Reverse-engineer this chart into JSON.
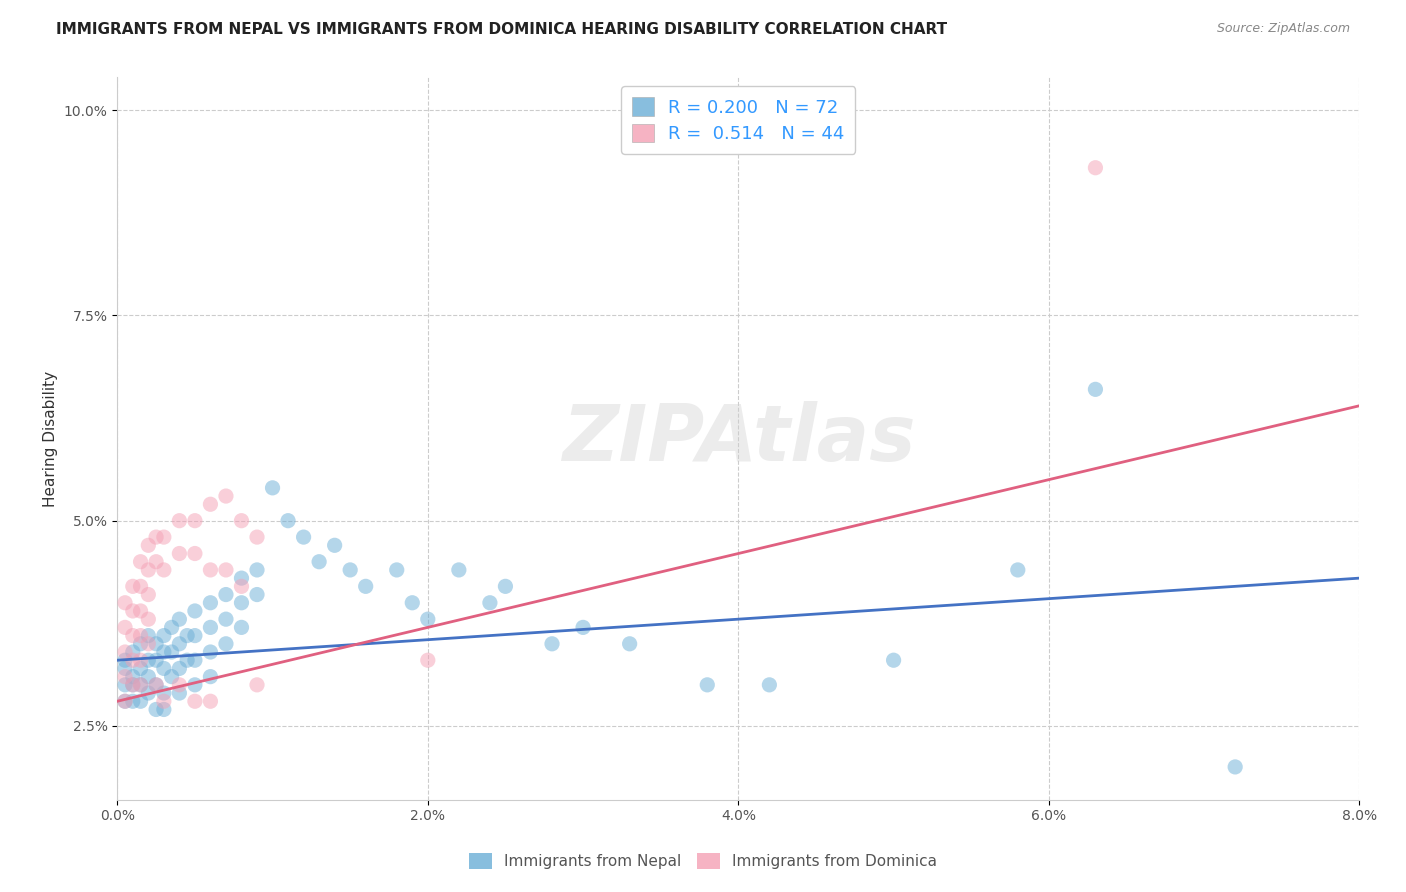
{
  "title": "IMMIGRANTS FROM NEPAL VS IMMIGRANTS FROM DOMINICA HEARING DISABILITY CORRELATION CHART",
  "source": "Source: ZipAtlas.com",
  "ylabel": "Hearing Disability",
  "xlim": [
    0.0,
    0.08
  ],
  "ylim": [
    0.016,
    0.104
  ],
  "yticks": [
    0.025,
    0.05,
    0.075,
    0.1
  ],
  "ytick_labels": [
    "2.5%",
    "5.0%",
    "7.5%",
    "10.0%"
  ],
  "xticks": [
    0.0,
    0.02,
    0.04,
    0.06,
    0.08
  ],
  "xtick_labels": [
    "0.0%",
    "2.0%",
    "4.0%",
    "6.0%",
    "8.0%"
  ],
  "watermark": "ZIPAtlas",
  "legend_R1": "R = 0.200",
  "legend_N1": "N = 72",
  "legend_R2": "R =  0.514",
  "legend_N2": "N = 44",
  "nepal_color": "#6baed6",
  "dominica_color": "#f4a0b5",
  "nepal_line_color": "#4472c4",
  "dominica_line_color": "#e06080",
  "nepal_scatter": [
    [
      0.0005,
      0.032
    ],
    [
      0.0005,
      0.033
    ],
    [
      0.0005,
      0.03
    ],
    [
      0.0005,
      0.028
    ],
    [
      0.001,
      0.034
    ],
    [
      0.001,
      0.031
    ],
    [
      0.001,
      0.03
    ],
    [
      0.001,
      0.028
    ],
    [
      0.0015,
      0.035
    ],
    [
      0.0015,
      0.032
    ],
    [
      0.0015,
      0.03
    ],
    [
      0.0015,
      0.028
    ],
    [
      0.002,
      0.036
    ],
    [
      0.002,
      0.033
    ],
    [
      0.002,
      0.031
    ],
    [
      0.002,
      0.029
    ],
    [
      0.0025,
      0.035
    ],
    [
      0.0025,
      0.033
    ],
    [
      0.0025,
      0.03
    ],
    [
      0.0025,
      0.027
    ],
    [
      0.003,
      0.036
    ],
    [
      0.003,
      0.034
    ],
    [
      0.003,
      0.032
    ],
    [
      0.003,
      0.029
    ],
    [
      0.003,
      0.027
    ],
    [
      0.0035,
      0.037
    ],
    [
      0.0035,
      0.034
    ],
    [
      0.0035,
      0.031
    ],
    [
      0.004,
      0.038
    ],
    [
      0.004,
      0.035
    ],
    [
      0.004,
      0.032
    ],
    [
      0.004,
      0.029
    ],
    [
      0.0045,
      0.036
    ],
    [
      0.0045,
      0.033
    ],
    [
      0.005,
      0.039
    ],
    [
      0.005,
      0.036
    ],
    [
      0.005,
      0.033
    ],
    [
      0.005,
      0.03
    ],
    [
      0.006,
      0.04
    ],
    [
      0.006,
      0.037
    ],
    [
      0.006,
      0.034
    ],
    [
      0.006,
      0.031
    ],
    [
      0.007,
      0.041
    ],
    [
      0.007,
      0.038
    ],
    [
      0.007,
      0.035
    ],
    [
      0.008,
      0.043
    ],
    [
      0.008,
      0.04
    ],
    [
      0.008,
      0.037
    ],
    [
      0.009,
      0.044
    ],
    [
      0.009,
      0.041
    ],
    [
      0.01,
      0.054
    ],
    [
      0.011,
      0.05
    ],
    [
      0.012,
      0.048
    ],
    [
      0.013,
      0.045
    ],
    [
      0.014,
      0.047
    ],
    [
      0.015,
      0.044
    ],
    [
      0.016,
      0.042
    ],
    [
      0.018,
      0.044
    ],
    [
      0.019,
      0.04
    ],
    [
      0.02,
      0.038
    ],
    [
      0.022,
      0.044
    ],
    [
      0.024,
      0.04
    ],
    [
      0.025,
      0.042
    ],
    [
      0.028,
      0.035
    ],
    [
      0.03,
      0.037
    ],
    [
      0.033,
      0.035
    ],
    [
      0.038,
      0.03
    ],
    [
      0.042,
      0.03
    ],
    [
      0.05,
      0.033
    ],
    [
      0.058,
      0.044
    ],
    [
      0.063,
      0.066
    ],
    [
      0.072,
      0.02
    ]
  ],
  "dominica_scatter": [
    [
      0.0005,
      0.04
    ],
    [
      0.0005,
      0.037
    ],
    [
      0.0005,
      0.034
    ],
    [
      0.0005,
      0.031
    ],
    [
      0.0005,
      0.028
    ],
    [
      0.001,
      0.042
    ],
    [
      0.001,
      0.039
    ],
    [
      0.001,
      0.036
    ],
    [
      0.001,
      0.033
    ],
    [
      0.001,
      0.03
    ],
    [
      0.0015,
      0.045
    ],
    [
      0.0015,
      0.042
    ],
    [
      0.0015,
      0.039
    ],
    [
      0.0015,
      0.036
    ],
    [
      0.0015,
      0.033
    ],
    [
      0.0015,
      0.03
    ],
    [
      0.002,
      0.047
    ],
    [
      0.002,
      0.044
    ],
    [
      0.002,
      0.041
    ],
    [
      0.002,
      0.038
    ],
    [
      0.002,
      0.035
    ],
    [
      0.0025,
      0.048
    ],
    [
      0.0025,
      0.045
    ],
    [
      0.0025,
      0.03
    ],
    [
      0.003,
      0.048
    ],
    [
      0.003,
      0.044
    ],
    [
      0.003,
      0.028
    ],
    [
      0.004,
      0.05
    ],
    [
      0.004,
      0.046
    ],
    [
      0.004,
      0.03
    ],
    [
      0.005,
      0.05
    ],
    [
      0.005,
      0.046
    ],
    [
      0.005,
      0.028
    ],
    [
      0.006,
      0.052
    ],
    [
      0.006,
      0.044
    ],
    [
      0.006,
      0.028
    ],
    [
      0.007,
      0.053
    ],
    [
      0.007,
      0.044
    ],
    [
      0.008,
      0.05
    ],
    [
      0.008,
      0.042
    ],
    [
      0.009,
      0.048
    ],
    [
      0.009,
      0.03
    ],
    [
      0.063,
      0.093
    ],
    [
      0.02,
      0.033
    ]
  ],
  "background_color": "#ffffff",
  "grid_color": "#cccccc",
  "title_fontsize": 11,
  "axis_label_fontsize": 11,
  "tick_fontsize": 10,
  "scatter_size": 120,
  "scatter_alpha": 0.5
}
